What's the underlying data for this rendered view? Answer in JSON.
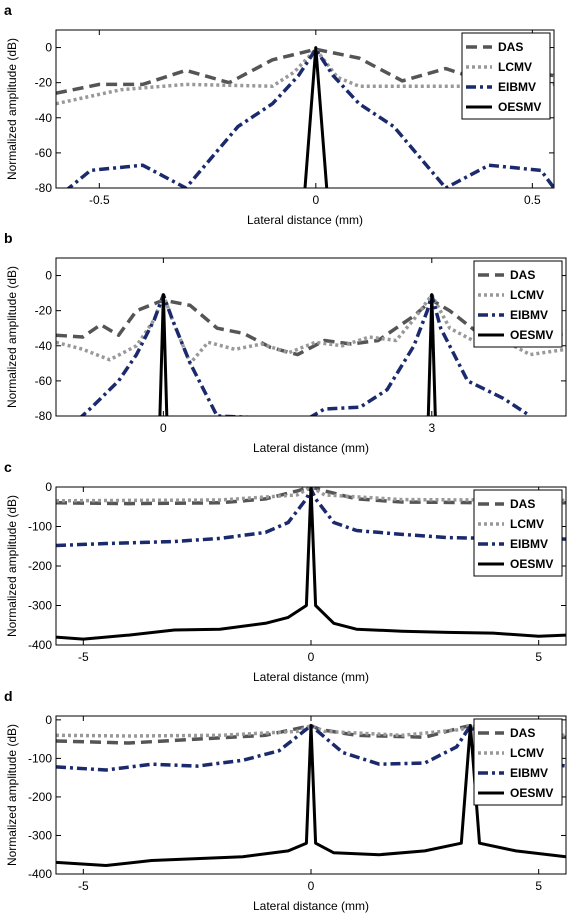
{
  "chart_data": [
    {
      "panel_label": "a",
      "type": "line",
      "xlabel": "Lateral distance (mm)",
      "ylabel": "Normalized amplitude (dB)",
      "xlim": [
        -0.6,
        0.55
      ],
      "ylim": [
        -80,
        10
      ],
      "xticks": [
        -0.5,
        0,
        0.5
      ],
      "yticks": [
        0,
        -20,
        -40,
        -60,
        -80
      ],
      "legend": {
        "position": "top-right",
        "entries": [
          "DAS",
          "LCMV",
          "EIBMV",
          "OESMV"
        ]
      },
      "grid": false,
      "series": [
        {
          "name": "DAS",
          "color": "#555555",
          "style": "dashed",
          "points": [
            [
              -0.6,
              -26
            ],
            [
              -0.5,
              -21
            ],
            [
              -0.4,
              -21
            ],
            [
              -0.3,
              -13
            ],
            [
              -0.2,
              -20
            ],
            [
              -0.1,
              -7
            ],
            [
              0,
              -1
            ],
            [
              0.1,
              -6
            ],
            [
              0.2,
              -19
            ],
            [
              0.3,
              -12
            ],
            [
              0.4,
              -20
            ],
            [
              0.5,
              -14
            ],
            [
              0.55,
              -16
            ]
          ]
        },
        {
          "name": "LCMV",
          "color": "#999999",
          "style": "dotted",
          "points": [
            [
              -0.6,
              -32
            ],
            [
              -0.45,
              -24
            ],
            [
              -0.3,
              -21
            ],
            [
              -0.1,
              -22
            ],
            [
              -0.05,
              -14
            ],
            [
              0,
              -1
            ],
            [
              0.05,
              -17
            ],
            [
              0.1,
              -22
            ],
            [
              0.3,
              -22
            ],
            [
              0.5,
              -22
            ],
            [
              0.55,
              -21
            ]
          ]
        },
        {
          "name": "EIBMV",
          "color": "#1a2a6c",
          "style": "dashdot",
          "points": [
            [
              -0.58,
              -82
            ],
            [
              -0.52,
              -70
            ],
            [
              -0.4,
              -67
            ],
            [
              -0.3,
              -80
            ],
            [
              -0.18,
              -45
            ],
            [
              -0.1,
              -32
            ],
            [
              -0.04,
              -16
            ],
            [
              0,
              -1
            ],
            [
              0.04,
              -16
            ],
            [
              0.1,
              -32
            ],
            [
              0.18,
              -45
            ],
            [
              0.3,
              -80
            ],
            [
              0.4,
              -67
            ],
            [
              0.52,
              -70
            ],
            [
              0.55,
              -80
            ]
          ]
        },
        {
          "name": "OESMV",
          "color": "#000000",
          "style": "solid",
          "points": [
            [
              -0.025,
              -80
            ],
            [
              0,
              0
            ],
            [
              0.025,
              -80
            ]
          ]
        }
      ]
    },
    {
      "panel_label": "b",
      "type": "line",
      "xlabel": "Lateral distance (mm)",
      "ylabel": "Normalized amplitude (dB)",
      "xlim": [
        -1.2,
        4.5
      ],
      "ylim": [
        -80,
        10
      ],
      "xticks": [
        0,
        3
      ],
      "yticks": [
        0,
        -20,
        -40,
        -60,
        -80
      ],
      "legend": {
        "position": "top-right",
        "entries": [
          "DAS",
          "LCMV",
          "EIBMV",
          "OESMV"
        ]
      },
      "grid": false,
      "series": [
        {
          "name": "DAS",
          "color": "#555555",
          "style": "dashed",
          "points": [
            [
              -1.2,
              -34
            ],
            [
              -0.9,
              -35
            ],
            [
              -0.7,
              -28
            ],
            [
              -0.5,
              -34
            ],
            [
              -0.3,
              -20
            ],
            [
              0,
              -14
            ],
            [
              0.3,
              -17
            ],
            [
              0.6,
              -30
            ],
            [
              0.9,
              -33
            ],
            [
              1.2,
              -41
            ],
            [
              1.5,
              -45
            ],
            [
              1.8,
              -37
            ],
            [
              2.1,
              -39
            ],
            [
              2.4,
              -37
            ],
            [
              2.6,
              -30
            ],
            [
              2.8,
              -23
            ],
            [
              3,
              -14
            ],
            [
              3.2,
              -20
            ],
            [
              3.5,
              -32
            ],
            [
              3.8,
              -38
            ],
            [
              4.1,
              -35
            ],
            [
              4.5,
              -33
            ]
          ]
        },
        {
          "name": "LCMV",
          "color": "#999999",
          "style": "dotted",
          "points": [
            [
              -1.2,
              -38
            ],
            [
              -0.9,
              -42
            ],
            [
              -0.6,
              -48
            ],
            [
              -0.3,
              -40
            ],
            [
              -0.1,
              -25
            ],
            [
              0,
              -11
            ],
            [
              0.1,
              -25
            ],
            [
              0.3,
              -50
            ],
            [
              0.5,
              -38
            ],
            [
              0.8,
              -42
            ],
            [
              1.1,
              -39
            ],
            [
              1.4,
              -44
            ],
            [
              1.7,
              -38
            ],
            [
              2.0,
              -40
            ],
            [
              2.3,
              -35
            ],
            [
              2.6,
              -37
            ],
            [
              2.8,
              -25
            ],
            [
              3,
              -11
            ],
            [
              3.2,
              -30
            ],
            [
              3.5,
              -38
            ],
            [
              3.8,
              -37
            ],
            [
              4.1,
              -45
            ],
            [
              4.5,
              -42
            ]
          ]
        },
        {
          "name": "EIBMV",
          "color": "#1a2a6c",
          "style": "dashdot",
          "points": [
            [
              -0.95,
              -82
            ],
            [
              -0.8,
              -75
            ],
            [
              -0.5,
              -60
            ],
            [
              -0.3,
              -45
            ],
            [
              -0.1,
              -25
            ],
            [
              0,
              -11
            ],
            [
              0.1,
              -25
            ],
            [
              0.3,
              -50
            ],
            [
              0.6,
              -80
            ],
            [
              1.6,
              -82
            ],
            [
              1.8,
              -76
            ],
            [
              2.2,
              -75
            ],
            [
              2.5,
              -65
            ],
            [
              2.8,
              -40
            ],
            [
              2.95,
              -20
            ],
            [
              3,
              -11
            ],
            [
              3.1,
              -30
            ],
            [
              3.4,
              -60
            ],
            [
              3.8,
              -70
            ],
            [
              4.1,
              -80
            ]
          ]
        },
        {
          "name": "OESMV",
          "color": "#000000",
          "style": "solid",
          "points": [
            [
              -0.04,
              -82
            ],
            [
              0,
              -11
            ],
            [
              0.04,
              -82
            ],
            [
              2.96,
              -82
            ],
            [
              3,
              -11
            ],
            [
              3.04,
              -82
            ]
          ]
        }
      ]
    },
    {
      "panel_label": "c",
      "type": "line",
      "xlabel": "Lateral distance (mm)",
      "ylabel": "Normalized amplitude (dB)",
      "xlim": [
        -5.6,
        5.6
      ],
      "ylim": [
        -400,
        0
      ],
      "xticks": [
        -5,
        0,
        5
      ],
      "yticks": [
        0,
        -100,
        -200,
        -300,
        -400
      ],
      "legend": {
        "position": "top-right",
        "entries": [
          "DAS",
          "LCMV",
          "EIBMV",
          "OESMV"
        ]
      },
      "grid": false,
      "series": [
        {
          "name": "DAS",
          "color": "#555555",
          "style": "dashed",
          "points": [
            [
              -5.6,
              -40
            ],
            [
              -4,
              -42
            ],
            [
              -2,
              -40
            ],
            [
              -1,
              -30
            ],
            [
              -0.3,
              -10
            ],
            [
              0,
              0
            ],
            [
              0.3,
              -10
            ],
            [
              1,
              -30
            ],
            [
              2,
              -38
            ],
            [
              4,
              -40
            ],
            [
              5.6,
              -40
            ]
          ]
        },
        {
          "name": "LCMV",
          "color": "#999999",
          "style": "dotted",
          "points": [
            [
              -5.6,
              -35
            ],
            [
              -4,
              -34
            ],
            [
              -2,
              -33
            ],
            [
              -0.3,
              -20
            ],
            [
              0,
              0
            ],
            [
              0.3,
              -20
            ],
            [
              2,
              -32
            ],
            [
              4,
              -33
            ],
            [
              5.6,
              -34
            ]
          ]
        },
        {
          "name": "EIBMV",
          "color": "#1a2a6c",
          "style": "dashdot",
          "points": [
            [
              -5.6,
              -148
            ],
            [
              -4.5,
              -143
            ],
            [
              -3,
              -138
            ],
            [
              -2,
              -130
            ],
            [
              -1,
              -115
            ],
            [
              -0.5,
              -90
            ],
            [
              -0.1,
              -30
            ],
            [
              0,
              -5
            ],
            [
              0.1,
              -30
            ],
            [
              0.5,
              -90
            ],
            [
              1,
              -110
            ],
            [
              2,
              -120
            ],
            [
              3,
              -128
            ],
            [
              4,
              -130
            ],
            [
              5.6,
              -132
            ]
          ]
        },
        {
          "name": "OESMV",
          "color": "#000000",
          "style": "solid",
          "points": [
            [
              -5.6,
              -380
            ],
            [
              -5,
              -385
            ],
            [
              -4,
              -375
            ],
            [
              -3,
              -362
            ],
            [
              -2,
              -360
            ],
            [
              -1,
              -345
            ],
            [
              -0.5,
              -330
            ],
            [
              -0.1,
              -300
            ],
            [
              0,
              0
            ],
            [
              0.1,
              -300
            ],
            [
              0.5,
              -345
            ],
            [
              1,
              -360
            ],
            [
              2,
              -365
            ],
            [
              3,
              -368
            ],
            [
              4,
              -370
            ],
            [
              5,
              -378
            ],
            [
              5.6,
              -375
            ]
          ]
        }
      ]
    },
    {
      "panel_label": "d",
      "type": "line",
      "xlabel": "Lateral distance (mm)",
      "ylabel": "Normalized amplitude (dB)",
      "xlim": [
        -5.6,
        5.6
      ],
      "ylim": [
        -400,
        10
      ],
      "xticks": [
        -5,
        0,
        5
      ],
      "yticks": [
        0,
        -100,
        -200,
        -300,
        -400
      ],
      "legend": {
        "position": "top-right",
        "entries": [
          "DAS",
          "LCMV",
          "EIBMV",
          "OESMV"
        ]
      },
      "grid": false,
      "series": [
        {
          "name": "DAS",
          "color": "#555555",
          "style": "dashed",
          "points": [
            [
              -5.6,
              -55
            ],
            [
              -4,
              -60
            ],
            [
              -2.5,
              -50
            ],
            [
              -1,
              -40
            ],
            [
              -0.2,
              -20
            ],
            [
              0,
              -15
            ],
            [
              0.2,
              -25
            ],
            [
              1,
              -40
            ],
            [
              2.5,
              -45
            ],
            [
              3.3,
              -20
            ],
            [
              3.5,
              -15
            ],
            [
              3.7,
              -25
            ],
            [
              4.5,
              -45
            ],
            [
              5.6,
              -45
            ]
          ]
        },
        {
          "name": "LCMV",
          "color": "#999999",
          "style": "dotted",
          "points": [
            [
              -5.6,
              -40
            ],
            [
              -4,
              -42
            ],
            [
              -2,
              -40
            ],
            [
              -0.3,
              -30
            ],
            [
              0,
              -15
            ],
            [
              0.3,
              -30
            ],
            [
              2,
              -40
            ],
            [
              3.3,
              -25
            ],
            [
              3.5,
              -15
            ],
            [
              3.7,
              -25
            ],
            [
              5.6,
              -40
            ]
          ]
        },
        {
          "name": "EIBMV",
          "color": "#1a2a6c",
          "style": "dashdot",
          "points": [
            [
              -5.6,
              -122
            ],
            [
              -4.5,
              -130
            ],
            [
              -3.5,
              -115
            ],
            [
              -2.5,
              -120
            ],
            [
              -1.5,
              -105
            ],
            [
              -0.7,
              -80
            ],
            [
              0,
              -15
            ],
            [
              0.7,
              -85
            ],
            [
              1.5,
              -115
            ],
            [
              2.5,
              -112
            ],
            [
              3.2,
              -70
            ],
            [
              3.5,
              -15
            ],
            [
              3.8,
              -80
            ],
            [
              4.5,
              -100
            ],
            [
              5.6,
              -120
            ]
          ]
        },
        {
          "name": "OESMV",
          "color": "#000000",
          "style": "solid",
          "points": [
            [
              -5.6,
              -370
            ],
            [
              -4.5,
              -378
            ],
            [
              -3.5,
              -365
            ],
            [
              -2.5,
              -360
            ],
            [
              -1.5,
              -355
            ],
            [
              -0.5,
              -340
            ],
            [
              -0.1,
              -320
            ],
            [
              0,
              -15
            ],
            [
              0.1,
              -320
            ],
            [
              0.5,
              -345
            ],
            [
              1.5,
              -350
            ],
            [
              2.5,
              -340
            ],
            [
              3.3,
              -320
            ],
            [
              3.5,
              -15
            ],
            [
              3.7,
              -320
            ],
            [
              4.5,
              -340
            ],
            [
              5.6,
              -355
            ]
          ]
        }
      ]
    }
  ]
}
